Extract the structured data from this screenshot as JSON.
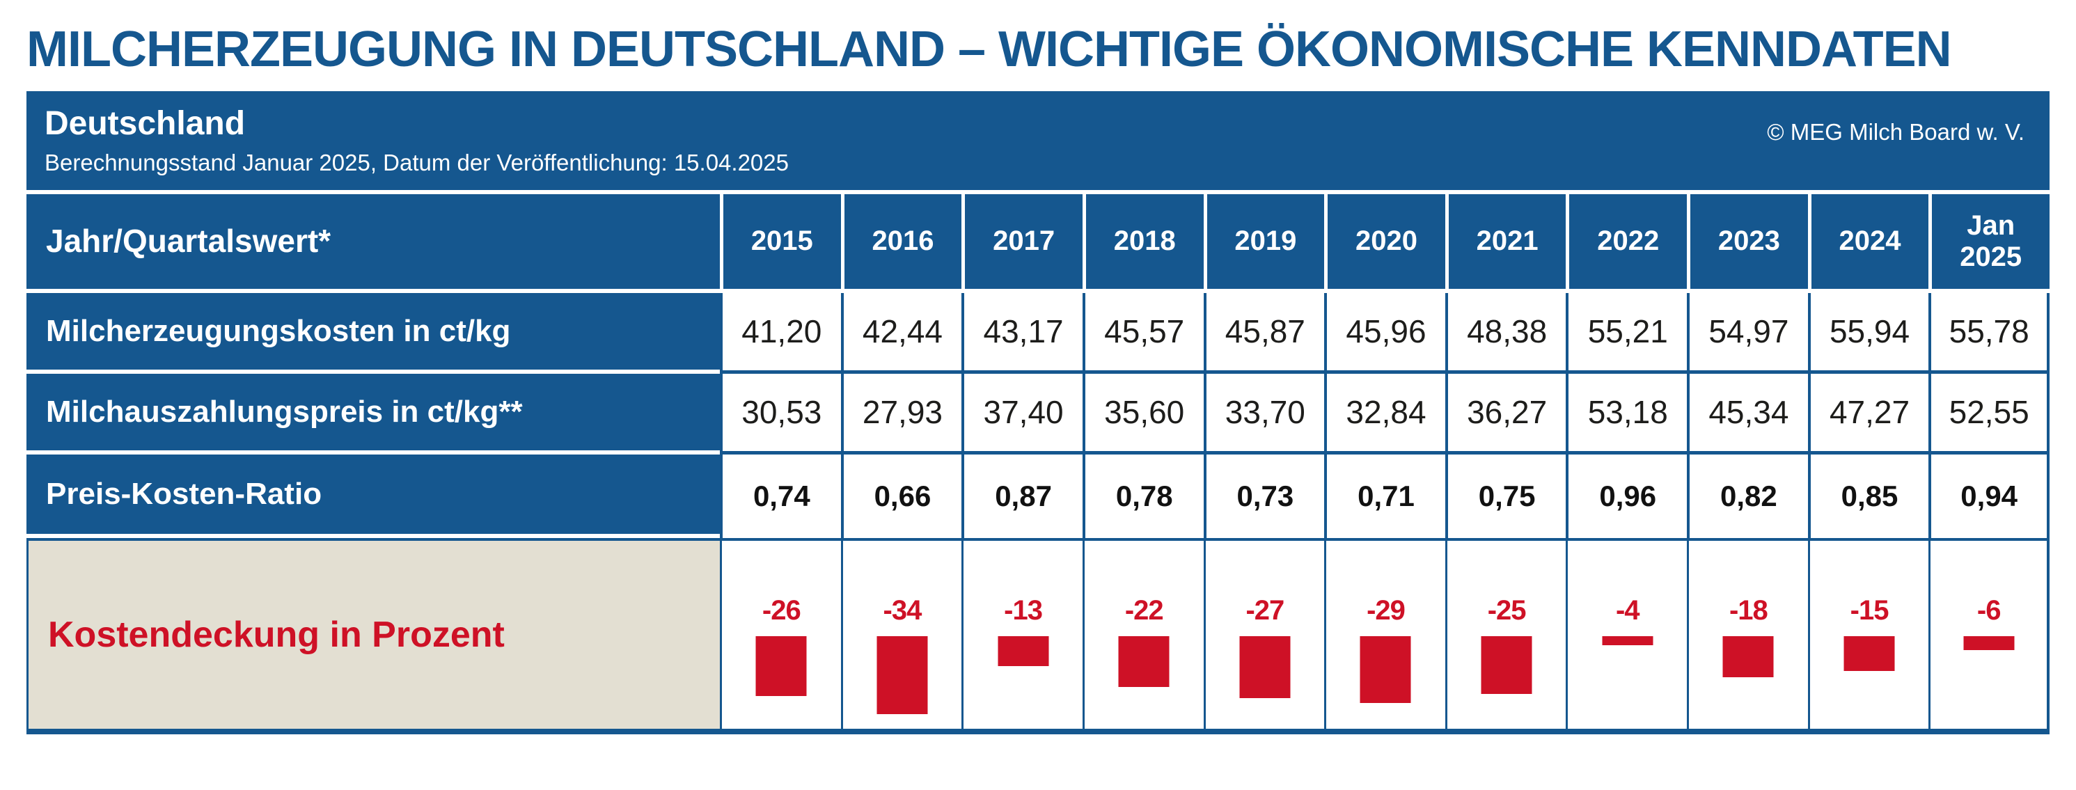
{
  "title": "MILCHERZEUGUNG IN DEUTSCHLAND – WICHTIGE ÖKONOMISCHE KENNDATEN",
  "header": {
    "region": "Deutschland",
    "subtitle": "Berechnungsstand Januar 2025, Datum der Veröffentlichung: 15.04.2025",
    "copyright": "© MEG Milch Board w. V."
  },
  "table": {
    "corner_label": "Jahr/Quartalswert*",
    "years": [
      "2015",
      "2016",
      "2017",
      "2018",
      "2019",
      "2020",
      "2021",
      "2022",
      "2023",
      "2024",
      "Jan\n2025"
    ],
    "rows": [
      {
        "label": "Milcherzeugungskosten in ct/kg",
        "bold": false,
        "values": [
          "41,20",
          "42,44",
          "43,17",
          "45,57",
          "45,87",
          "45,96",
          "48,38",
          "55,21",
          "54,97",
          "55,94",
          "55,78"
        ]
      },
      {
        "label": "Milchauszahlungspreis in ct/kg**",
        "bold": false,
        "values": [
          "30,53",
          "27,93",
          "37,40",
          "35,60",
          "33,70",
          "32,84",
          "36,27",
          "53,18",
          "45,34",
          "47,27",
          "52,55"
        ]
      },
      {
        "label": "Preis-Kosten-Ratio",
        "bold": true,
        "values": [
          "0,74",
          "0,66",
          "0,87",
          "0,78",
          "0,73",
          "0,71",
          "0,75",
          "0,96",
          "0,82",
          "0,85",
          "0,94"
        ]
      }
    ],
    "bar_row": {
      "label": "Kostendeckung in Prozent",
      "values": [
        -26,
        -34,
        -13,
        -22,
        -27,
        -29,
        -25,
        -4,
        -18,
        -15,
        -6
      ]
    }
  },
  "colors": {
    "blue": "#15578f",
    "red": "#ce1126",
    "beige": "#e3dfd2",
    "value_text": "#1d1d1b",
    "background": "#ffffff"
  },
  "chart_data": [
    {
      "type": "table",
      "title": "Milcherzeugung in Deutschland – wichtige ökonomische Kenndaten",
      "categories": [
        "2015",
        "2016",
        "2017",
        "2018",
        "2019",
        "2020",
        "2021",
        "2022",
        "2023",
        "2024",
        "Jan 2025"
      ],
      "series": [
        {
          "name": "Milcherzeugungskosten in ct/kg",
          "values": [
            41.2,
            42.44,
            43.17,
            45.57,
            45.87,
            45.96,
            48.38,
            55.21,
            54.97,
            55.94,
            55.78
          ]
        },
        {
          "name": "Milchauszahlungspreis in ct/kg**",
          "values": [
            30.53,
            27.93,
            37.4,
            35.6,
            33.7,
            32.84,
            36.27,
            53.18,
            45.34,
            47.27,
            52.55
          ]
        },
        {
          "name": "Preis-Kosten-Ratio",
          "values": [
            0.74,
            0.66,
            0.87,
            0.78,
            0.73,
            0.71,
            0.75,
            0.96,
            0.82,
            0.85,
            0.94
          ]
        }
      ]
    },
    {
      "type": "bar",
      "title": "Kostendeckung in Prozent",
      "xlabel": "",
      "ylabel": "Prozent",
      "categories": [
        "2015",
        "2016",
        "2017",
        "2018",
        "2019",
        "2020",
        "2021",
        "2022",
        "2023",
        "2024",
        "Jan 2025"
      ],
      "values": [
        -26,
        -34,
        -13,
        -22,
        -27,
        -29,
        -25,
        -4,
        -18,
        -15,
        -6
      ],
      "ylim": [
        -40,
        0
      ],
      "grid": false,
      "legend": "none",
      "bar_color": "#ce1126",
      "data_labels": true
    }
  ]
}
